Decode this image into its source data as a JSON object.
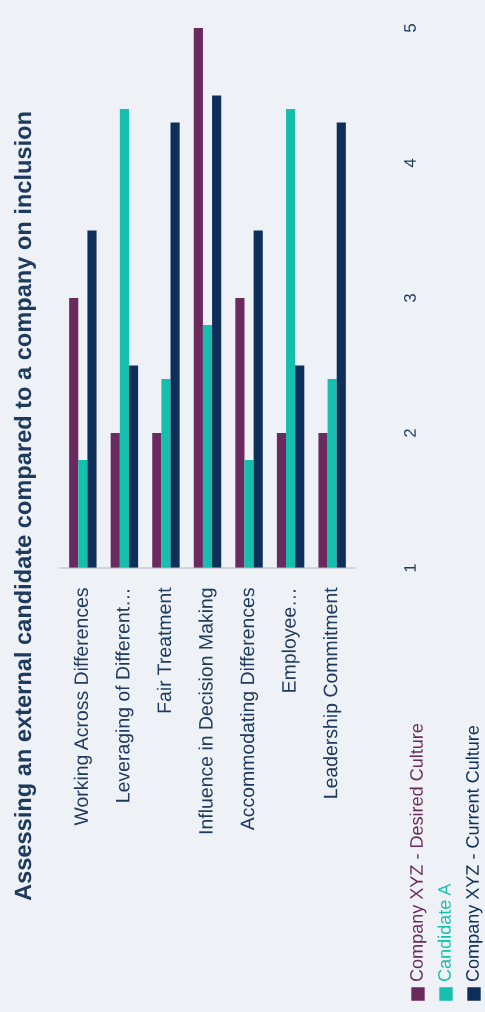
{
  "chart_data": {
    "type": "bar",
    "title": "Assessing an external candidate compared to a company on inclusion",
    "categories": [
      "Working Across Differences",
      "Leveraging of Different…",
      "Fair Treatment",
      "Influence in Decision Making",
      "Accommodating Differences",
      "Employee…",
      "Leadership Commitment"
    ],
    "series": [
      {
        "name": "Company XYZ - Desired Culture",
        "color": "#6b2a5e",
        "values": [
          3,
          2,
          2,
          5,
          3,
          2,
          2
        ]
      },
      {
        "name": "Candidate A",
        "color": "#14bfae",
        "values": [
          1.8,
          4.4,
          2.4,
          2.8,
          1.8,
          4.4,
          2.4
        ]
      },
      {
        "name": "Company XYZ - Current Culture",
        "color": "#0d2f5a",
        "values": [
          3.5,
          2.5,
          4.3,
          4.5,
          3.5,
          2.5,
          4.3
        ]
      }
    ],
    "ylim": [
      1,
      5
    ],
    "yticks": [
      1,
      2,
      3,
      4,
      5
    ],
    "grid": false,
    "legend": "bottom"
  }
}
